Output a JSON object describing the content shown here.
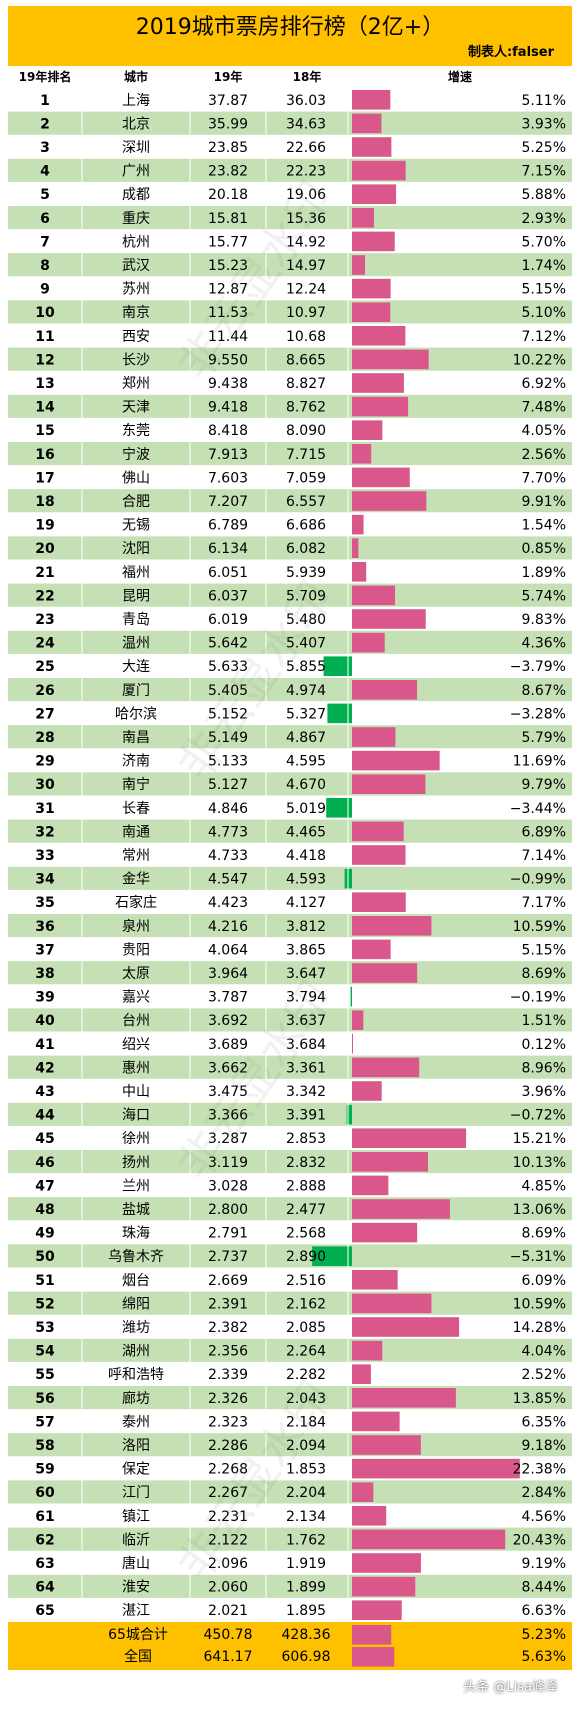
{
  "title": "2019城市票房排行榜（2亿+）",
  "maker": "制表人:falser",
  "headers": {
    "rank": "19年排名",
    "city": "城市",
    "y19": "19年",
    "y18": "18年",
    "growth": "增速"
  },
  "watermark": "非云显水印",
  "footer_logo": "头条 @Lisa峰泽",
  "colors": {
    "title_bg": "#ffc000",
    "row_green": "#c5e0b4",
    "row_white": "#ffffff",
    "bar_positive": "#d9578a",
    "bar_negative": "#00b050",
    "total_bg": "#ffc000"
  },
  "chart_data": {
    "type": "table",
    "columns": [
      "19年排名",
      "城市",
      "19年",
      "18年",
      "增速"
    ],
    "rows": [
      {
        "rank": "1",
        "city": "上海",
        "y19": "37.87",
        "y18": "36.03",
        "growth": "5.11%",
        "g": 5.11
      },
      {
        "rank": "2",
        "city": "北京",
        "y19": "35.99",
        "y18": "34.63",
        "growth": "3.93%",
        "g": 3.93
      },
      {
        "rank": "3",
        "city": "深圳",
        "y19": "23.85",
        "y18": "22.66",
        "growth": "5.25%",
        "g": 5.25
      },
      {
        "rank": "4",
        "city": "广州",
        "y19": "23.82",
        "y18": "22.23",
        "growth": "7.15%",
        "g": 7.15
      },
      {
        "rank": "5",
        "city": "成都",
        "y19": "20.18",
        "y18": "19.06",
        "growth": "5.88%",
        "g": 5.88
      },
      {
        "rank": "6",
        "city": "重庆",
        "y19": "15.81",
        "y18": "15.36",
        "growth": "2.93%",
        "g": 2.93
      },
      {
        "rank": "7",
        "city": "杭州",
        "y19": "15.77",
        "y18": "14.92",
        "growth": "5.70%",
        "g": 5.7
      },
      {
        "rank": "8",
        "city": "武汉",
        "y19": "15.23",
        "y18": "14.97",
        "growth": "1.74%",
        "g": 1.74
      },
      {
        "rank": "9",
        "city": "苏州",
        "y19": "12.87",
        "y18": "12.24",
        "growth": "5.15%",
        "g": 5.15
      },
      {
        "rank": "10",
        "city": "南京",
        "y19": "11.53",
        "y18": "10.97",
        "growth": "5.10%",
        "g": 5.1
      },
      {
        "rank": "11",
        "city": "西安",
        "y19": "11.44",
        "y18": "10.68",
        "growth": "7.12%",
        "g": 7.12
      },
      {
        "rank": "12",
        "city": "长沙",
        "y19": "9.550",
        "y18": "8.665",
        "growth": "10.22%",
        "g": 10.22
      },
      {
        "rank": "13",
        "city": "郑州",
        "y19": "9.438",
        "y18": "8.827",
        "growth": "6.92%",
        "g": 6.92
      },
      {
        "rank": "14",
        "city": "天津",
        "y19": "9.418",
        "y18": "8.762",
        "growth": "7.48%",
        "g": 7.48
      },
      {
        "rank": "15",
        "city": "东莞",
        "y19": "8.418",
        "y18": "8.090",
        "growth": "4.05%",
        "g": 4.05
      },
      {
        "rank": "16",
        "city": "宁波",
        "y19": "7.913",
        "y18": "7.715",
        "growth": "2.56%",
        "g": 2.56
      },
      {
        "rank": "17",
        "city": "佛山",
        "y19": "7.603",
        "y18": "7.059",
        "growth": "7.70%",
        "g": 7.7
      },
      {
        "rank": "18",
        "city": "合肥",
        "y19": "7.207",
        "y18": "6.557",
        "growth": "9.91%",
        "g": 9.91
      },
      {
        "rank": "19",
        "city": "无锡",
        "y19": "6.789",
        "y18": "6.686",
        "growth": "1.54%",
        "g": 1.54
      },
      {
        "rank": "20",
        "city": "沈阳",
        "y19": "6.134",
        "y18": "6.082",
        "growth": "0.85%",
        "g": 0.85
      },
      {
        "rank": "21",
        "city": "福州",
        "y19": "6.051",
        "y18": "5.939",
        "growth": "1.89%",
        "g": 1.89
      },
      {
        "rank": "22",
        "city": "昆明",
        "y19": "6.037",
        "y18": "5.709",
        "growth": "5.74%",
        "g": 5.74
      },
      {
        "rank": "23",
        "city": "青岛",
        "y19": "6.019",
        "y18": "5.480",
        "growth": "9.83%",
        "g": 9.83
      },
      {
        "rank": "24",
        "city": "温州",
        "y19": "5.642",
        "y18": "5.407",
        "growth": "4.36%",
        "g": 4.36
      },
      {
        "rank": "25",
        "city": "大连",
        "y19": "5.633",
        "y18": "5.855",
        "growth": "−3.79%",
        "g": -3.79
      },
      {
        "rank": "26",
        "city": "厦门",
        "y19": "5.405",
        "y18": "4.974",
        "growth": "8.67%",
        "g": 8.67
      },
      {
        "rank": "27",
        "city": "哈尔滨",
        "y19": "5.152",
        "y18": "5.327",
        "growth": "−3.28%",
        "g": -3.28
      },
      {
        "rank": "28",
        "city": "南昌",
        "y19": "5.149",
        "y18": "4.867",
        "growth": "5.79%",
        "g": 5.79
      },
      {
        "rank": "29",
        "city": "济南",
        "y19": "5.133",
        "y18": "4.595",
        "growth": "11.69%",
        "g": 11.69
      },
      {
        "rank": "30",
        "city": "南宁",
        "y19": "5.127",
        "y18": "4.670",
        "growth": "9.79%",
        "g": 9.79
      },
      {
        "rank": "31",
        "city": "长春",
        "y19": "4.846",
        "y18": "5.019",
        "growth": "−3.44%",
        "g": -3.44
      },
      {
        "rank": "32",
        "city": "南通",
        "y19": "4.773",
        "y18": "4.465",
        "growth": "6.89%",
        "g": 6.89
      },
      {
        "rank": "33",
        "city": "常州",
        "y19": "4.733",
        "y18": "4.418",
        "growth": "7.14%",
        "g": 7.14
      },
      {
        "rank": "34",
        "city": "金华",
        "y19": "4.547",
        "y18": "4.593",
        "growth": "−0.99%",
        "g": -0.99
      },
      {
        "rank": "35",
        "city": "石家庄",
        "y19": "4.423",
        "y18": "4.127",
        "growth": "7.17%",
        "g": 7.17
      },
      {
        "rank": "36",
        "city": "泉州",
        "y19": "4.216",
        "y18": "3.812",
        "growth": "10.59%",
        "g": 10.59
      },
      {
        "rank": "37",
        "city": "贵阳",
        "y19": "4.064",
        "y18": "3.865",
        "growth": "5.15%",
        "g": 5.15
      },
      {
        "rank": "38",
        "city": "太原",
        "y19": "3.964",
        "y18": "3.647",
        "growth": "8.69%",
        "g": 8.69
      },
      {
        "rank": "39",
        "city": "嘉兴",
        "y19": "3.787",
        "y18": "3.794",
        "growth": "−0.19%",
        "g": -0.19
      },
      {
        "rank": "40",
        "city": "台州",
        "y19": "3.692",
        "y18": "3.637",
        "growth": "1.51%",
        "g": 1.51
      },
      {
        "rank": "41",
        "city": "绍兴",
        "y19": "3.689",
        "y18": "3.684",
        "growth": "0.12%",
        "g": 0.12
      },
      {
        "rank": "42",
        "city": "惠州",
        "y19": "3.662",
        "y18": "3.361",
        "growth": "8.96%",
        "g": 8.96
      },
      {
        "rank": "43",
        "city": "中山",
        "y19": "3.475",
        "y18": "3.342",
        "growth": "3.96%",
        "g": 3.96
      },
      {
        "rank": "44",
        "city": "海口",
        "y19": "3.366",
        "y18": "3.391",
        "growth": "−0.72%",
        "g": -0.72
      },
      {
        "rank": "45",
        "city": "徐州",
        "y19": "3.287",
        "y18": "2.853",
        "growth": "15.21%",
        "g": 15.21
      },
      {
        "rank": "46",
        "city": "扬州",
        "y19": "3.119",
        "y18": "2.832",
        "growth": "10.13%",
        "g": 10.13
      },
      {
        "rank": "47",
        "city": "兰州",
        "y19": "3.028",
        "y18": "2.888",
        "growth": "4.85%",
        "g": 4.85
      },
      {
        "rank": "48",
        "city": "盐城",
        "y19": "2.800",
        "y18": "2.477",
        "growth": "13.06%",
        "g": 13.06
      },
      {
        "rank": "49",
        "city": "珠海",
        "y19": "2.791",
        "y18": "2.568",
        "growth": "8.69%",
        "g": 8.69
      },
      {
        "rank": "50",
        "city": "乌鲁木齐",
        "y19": "2.737",
        "y18": "2.890",
        "growth": "−5.31%",
        "g": -5.31
      },
      {
        "rank": "51",
        "city": "烟台",
        "y19": "2.669",
        "y18": "2.516",
        "growth": "6.09%",
        "g": 6.09
      },
      {
        "rank": "52",
        "city": "绵阳",
        "y19": "2.391",
        "y18": "2.162",
        "growth": "10.59%",
        "g": 10.59
      },
      {
        "rank": "53",
        "city": "潍坊",
        "y19": "2.382",
        "y18": "2.085",
        "growth": "14.28%",
        "g": 14.28
      },
      {
        "rank": "54",
        "city": "湖州",
        "y19": "2.356",
        "y18": "2.264",
        "growth": "4.04%",
        "g": 4.04
      },
      {
        "rank": "55",
        "city": "呼和浩特",
        "y19": "2.339",
        "y18": "2.282",
        "growth": "2.52%",
        "g": 2.52
      },
      {
        "rank": "56",
        "city": "廊坊",
        "y19": "2.326",
        "y18": "2.043",
        "growth": "13.85%",
        "g": 13.85
      },
      {
        "rank": "57",
        "city": "泰州",
        "y19": "2.323",
        "y18": "2.184",
        "growth": "6.35%",
        "g": 6.35
      },
      {
        "rank": "58",
        "city": "洛阳",
        "y19": "2.286",
        "y18": "2.094",
        "growth": "9.18%",
        "g": 9.18
      },
      {
        "rank": "59",
        "city": "保定",
        "y19": "2.268",
        "y18": "1.853",
        "growth": "22.38%",
        "g": 22.38
      },
      {
        "rank": "60",
        "city": "江门",
        "y19": "2.267",
        "y18": "2.204",
        "growth": "2.84%",
        "g": 2.84
      },
      {
        "rank": "61",
        "city": "镇江",
        "y19": "2.231",
        "y18": "2.134",
        "growth": "4.56%",
        "g": 4.56
      },
      {
        "rank": "62",
        "city": "临沂",
        "y19": "2.122",
        "y18": "1.762",
        "growth": "20.43%",
        "g": 20.43
      },
      {
        "rank": "63",
        "city": "唐山",
        "y19": "2.096",
        "y18": "1.919",
        "growth": "9.19%",
        "g": 9.19
      },
      {
        "rank": "64",
        "city": "淮安",
        "y19": "2.060",
        "y18": "1.899",
        "growth": "8.44%",
        "g": 8.44
      },
      {
        "rank": "65",
        "city": "湛江",
        "y19": "2.021",
        "y18": "1.895",
        "growth": "6.63%",
        "g": 6.63
      }
    ],
    "totals": [
      {
        "label": "65城合计",
        "y19": "450.78",
        "y18": "428.36",
        "growth": "5.23%",
        "g": 5.23
      },
      {
        "label": "全国",
        "y19": "641.17",
        "y18": "606.98",
        "growth": "5.63%",
        "g": 5.63
      }
    ]
  }
}
